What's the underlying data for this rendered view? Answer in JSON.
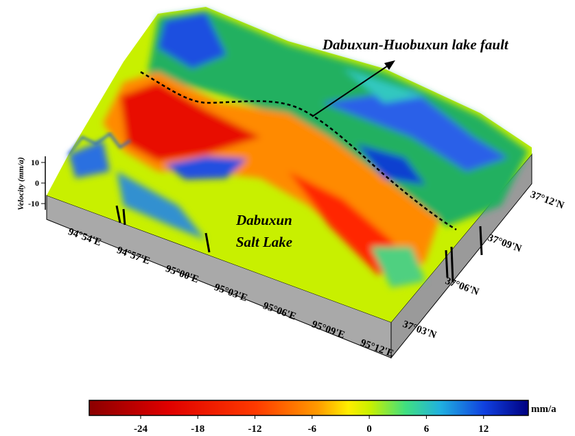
{
  "annotations": {
    "fault": "Dabuxun-Huobuxun lake fault",
    "lake": [
      "Dabuxun",
      "Salt Lake"
    ]
  },
  "velocity_axis": {
    "label": "Velocity (mm/a)",
    "range": [
      -13,
      13
    ],
    "ticks": [
      10,
      0,
      -10
    ]
  },
  "longitude_labels": [
    "94°54'E",
    "94°57'E",
    "95°00'E",
    "95°03'E",
    "95°06'E",
    "95°09'E",
    "95°12'E"
  ],
  "latitude_labels": [
    "37°12'N",
    "37°09'N",
    "37°06'N",
    "37°03'N"
  ],
  "colorbar": {
    "range": [
      -29.4,
      16.7
    ],
    "ticks": [
      -24,
      -18,
      -12,
      -6,
      0,
      6,
      12
    ],
    "unit": "mm/a"
  }
}
